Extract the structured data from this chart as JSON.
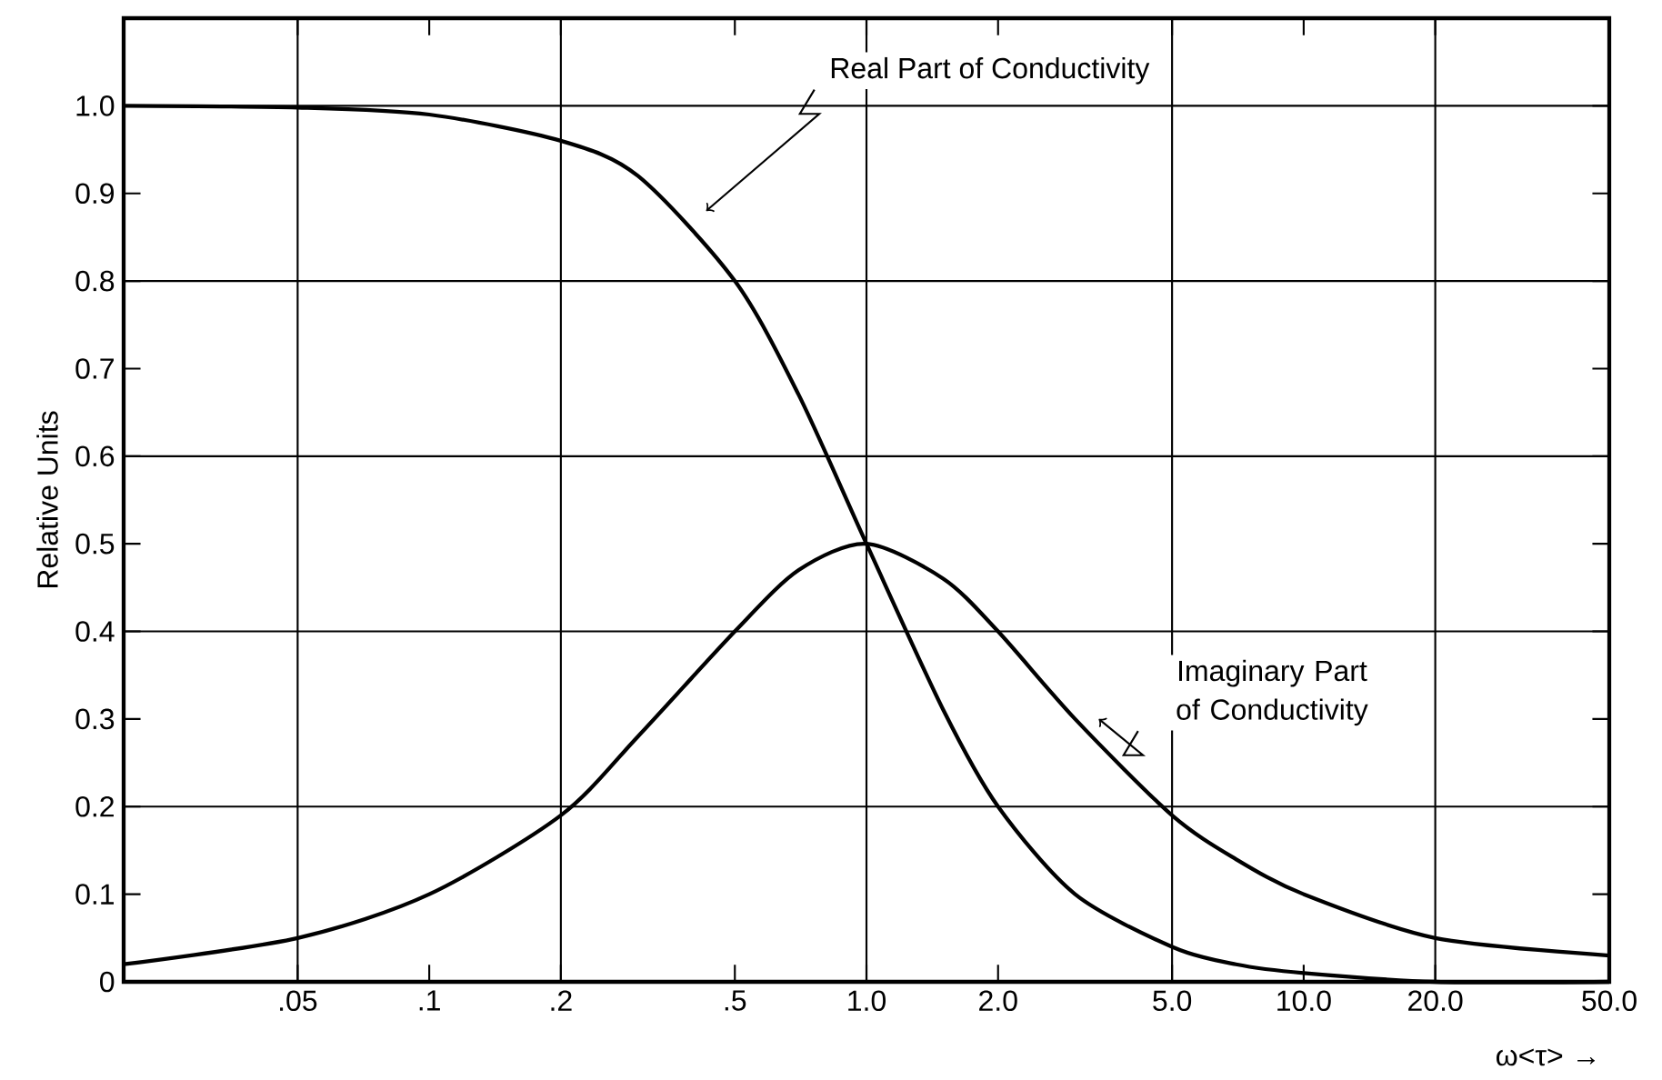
{
  "chart_data": {
    "type": "line",
    "ylabel": "Relative Units",
    "xlabel": "ω<τ> →",
    "log": "x",
    "xlim": [
      0.02,
      50
    ],
    "ylim": [
      0,
      1.1
    ],
    "xticks": [
      {
        "value": 0.05,
        "label": ".05"
      },
      {
        "value": 0.1,
        "label": ".1"
      },
      {
        "value": 0.2,
        "label": ".2"
      },
      {
        "value": 0.5,
        "label": ".5"
      },
      {
        "value": 1,
        "label": "1.0"
      },
      {
        "value": 2,
        "label": "2.0"
      },
      {
        "value": 5,
        "label": "5.0"
      },
      {
        "value": 10,
        "label": "10.0"
      },
      {
        "value": 20,
        "label": "20.0"
      },
      {
        "value": 50,
        "label": "50.0"
      }
    ],
    "yticks": [
      0,
      0.1,
      0.2,
      0.3,
      0.4,
      0.5,
      0.6,
      0.7,
      0.8,
      0.9,
      {
        "value": 1,
        "label": "1.0"
      }
    ],
    "ref_lines": [
      {
        "axis": "x",
        "value": 0.05,
        "color": "#000000"
      },
      {
        "axis": "x",
        "value": 0.2,
        "color": "#000000"
      },
      {
        "axis": "x",
        "value": 1,
        "color": "#000000"
      },
      {
        "axis": "x",
        "value": 5,
        "color": "#000000"
      },
      {
        "axis": "x",
        "value": 20,
        "color": "#000000"
      },
      {
        "axis": "y",
        "value": 0.2,
        "color": "#000000"
      },
      {
        "axis": "y",
        "value": 0.4,
        "color": "#000000"
      },
      {
        "axis": "y",
        "value": 0.6,
        "color": "#000000"
      },
      {
        "axis": "y",
        "value": 0.8,
        "color": "#000000"
      },
      {
        "axis": "y",
        "value": 1,
        "color": "#000000"
      }
    ],
    "x": [
      0.02,
      0.05,
      0.1,
      0.2,
      0.3,
      0.5,
      0.7,
      1,
      1.5,
      2,
      3,
      5,
      7,
      10,
      20,
      50
    ],
    "series": [
      {
        "color": "#000000",
        "values": [
          1.0,
          0.998,
          0.99,
          0.96,
          0.92,
          0.8,
          0.67,
          0.5,
          0.31,
          0.2,
          0.1,
          0.04,
          0.02,
          0.01,
          0.0,
          0.0
        ]
      },
      {
        "color": "#000000",
        "values": [
          0.02,
          0.05,
          0.1,
          0.19,
          0.28,
          0.4,
          0.47,
          0.5,
          0.46,
          0.4,
          0.3,
          0.19,
          0.14,
          0.1,
          0.05,
          0.03
        ]
      }
    ],
    "annotations": [
      "Real Part of Conductivity",
      "Imaginary Part of Conductivity"
    ],
    "grid": false,
    "marker": "none",
    "line_style": "solid"
  }
}
